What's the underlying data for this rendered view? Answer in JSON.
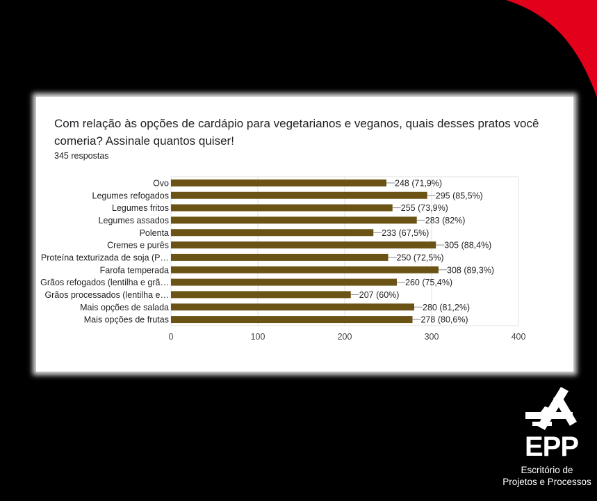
{
  "colors": {
    "background": "#000000",
    "accent_red": "#e3001b",
    "bar": "#6b5316",
    "card": "#ffffff"
  },
  "question": {
    "title": "Com relação às opções de cardápio para vegetarianos e veganos, quais desses pratos você comeria? Assinale quantos quiser!",
    "responses": "345 respostas"
  },
  "chart_data": {
    "type": "bar",
    "orientation": "horizontal",
    "title": "",
    "xlabel": "",
    "ylabel": "",
    "xlim": [
      0,
      400
    ],
    "x_ticks": [
      "0",
      "100",
      "200",
      "300",
      "400"
    ],
    "grid": true,
    "categories": [
      "Ovo",
      "Legumes refogados",
      "Legumes fritos",
      "Legumes assados",
      "Polenta",
      "Cremes e purês",
      "Proteína texturizada de soja (P…",
      "Farofa temperada",
      "Grãos refogados (lentilha e grã…",
      "Grãos processados (lentilha e…",
      "Mais opções de salada",
      "Mais opções de frutas"
    ],
    "values": [
      248,
      295,
      255,
      283,
      233,
      305,
      250,
      308,
      260,
      207,
      280,
      278
    ],
    "data_labels": [
      "248 (71,9%)",
      "295 (85,5%)",
      "255 (73,9%)",
      "283 (82%)",
      "233 (67,5%)",
      "305 (88,4%)",
      "250 (72,5%)",
      "308 (89,3%)",
      "260 (75,4%)",
      "207 (60%)",
      "280 (81,2%)",
      "278 (80,6%)"
    ]
  },
  "logo": {
    "acronym": "EPP",
    "line1": "Escritório de",
    "line2": "Projetos e Processos",
    "icon": "epp-emblem-icon"
  }
}
